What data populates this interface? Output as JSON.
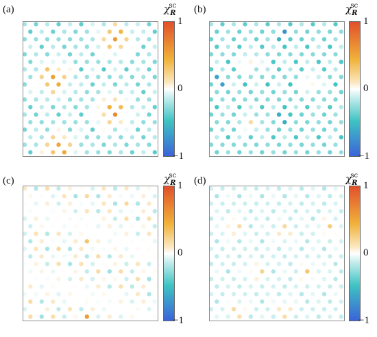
{
  "panels": [
    {
      "label": "(a)",
      "colorbar": {
        "symbol": "χ",
        "subscript": "R",
        "superscript": "sc",
        "ticks": [
          "1",
          "0",
          "−1"
        ]
      }
    },
    {
      "label": "(b)",
      "colorbar": {
        "symbol": "χ",
        "subscript": "R",
        "superscript": "sc",
        "ticks": [
          "1",
          "0",
          "−1"
        ]
      }
    },
    {
      "label": "(c)",
      "colorbar": {
        "symbol": "χ",
        "subscript": "R",
        "superscript": "sc",
        "ticks": [
          "1",
          "0",
          "−1"
        ]
      }
    },
    {
      "label": "(d)",
      "colorbar": {
        "symbol": "χ",
        "subscript": "R",
        "superscript": "sc",
        "ticks": [
          "1",
          "0",
          "−1"
        ]
      }
    }
  ],
  "chart_data": [
    {
      "type": "heatmap",
      "panel": "(a)",
      "grid": "triangular lattice of sites",
      "value_range": [
        -1,
        1
      ],
      "dominant_values": "orange clusters up to ~0.6, cyan regions around -0.3"
    },
    {
      "type": "heatmap",
      "panel": "(b)",
      "grid": "triangular lattice of sites",
      "value_range": [
        -1,
        1
      ],
      "dominant_values": "mostly cyan ~-0.3, blue spots down to ~-0.7, weak orange ~0.3"
    },
    {
      "type": "heatmap",
      "panel": "(c)",
      "grid": "triangular lattice of sites",
      "value_range": [
        -1,
        1
      ],
      "dominant_values": "alternating pale cyan and pale orange ~±0.2, few orange spots ~0.5"
    },
    {
      "type": "heatmap",
      "panel": "(d)",
      "grid": "triangular lattice of sites",
      "value_range": [
        -1,
        1
      ],
      "dominant_values": "pale orange clusters ~0.3, pale cyan background ~-0.15"
    }
  ],
  "colorscale": {
    "negative": "#3b63d9",
    "neg_mid": "#3ec2c2",
    "zero": "#ffffff",
    "pos_mid": "#f0b23a",
    "positive": "#e1502b"
  }
}
